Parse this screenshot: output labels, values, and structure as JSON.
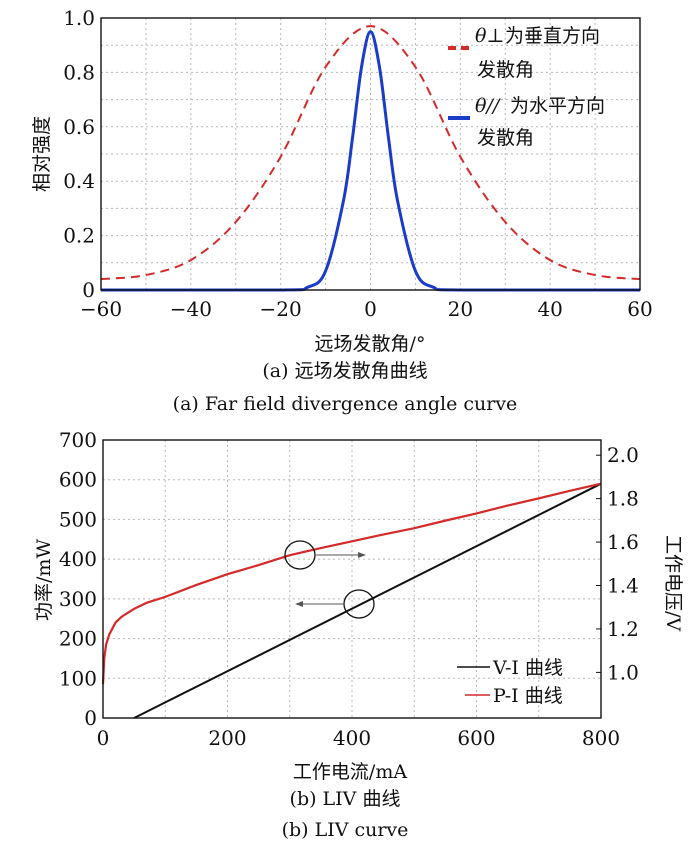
{
  "chart_data": [
    {
      "type": "line",
      "title": "",
      "xlabel": "远场发散角/°",
      "ylabel": "相对强度",
      "xlim": [
        -60,
        60
      ],
      "ylim": [
        0,
        1.0
      ],
      "xticks": [
        "−60",
        "−40",
        "−20",
        "0",
        "20",
        "40",
        "60"
      ],
      "yticks": [
        "0",
        "0.2",
        "0.4",
        "0.6",
        "0.8",
        "1.0"
      ],
      "grid": true,
      "legend_position": "top-right",
      "series": [
        {
          "legend_symbol": "θ⊥",
          "legend_text": "为垂直方向",
          "legend_text2": "发散角",
          "color": "#d42a2a",
          "style": "dashed",
          "x": [
            -60,
            -50,
            -40,
            -30,
            -20,
            -10,
            0,
            10,
            20,
            30,
            40,
            50,
            60
          ],
          "y": [
            0.04,
            0.055,
            0.11,
            0.25,
            0.49,
            0.82,
            0.97,
            0.82,
            0.49,
            0.25,
            0.11,
            0.055,
            0.04
          ]
        },
        {
          "legend_symbol": "θ//",
          "legend_text": "为水平方向",
          "legend_text2": "发散角",
          "color": "#1a3cc8",
          "style": "solid",
          "x": [
            -60,
            -20,
            -14,
            -10,
            -6,
            -4,
            -2,
            0,
            2,
            4,
            6,
            10,
            14,
            20,
            60
          ],
          "y": [
            0,
            0,
            0.01,
            0.07,
            0.33,
            0.56,
            0.82,
            0.95,
            0.82,
            0.56,
            0.33,
            0.07,
            0.01,
            0,
            0
          ]
        }
      ],
      "caption_cn": "(a) 远场发散角曲线",
      "caption_en": "(a) Far field divergence angle curve"
    },
    {
      "type": "line",
      "title": "",
      "xlabel": "工作电流/mA",
      "ylabel_left": "功率/mW",
      "ylabel_right": "工作电压/V",
      "xlim": [
        0,
        800
      ],
      "ylim_left": [
        0,
        700
      ],
      "ylim_right": [
        0.79,
        2.07
      ],
      "xticks": [
        "0",
        "200",
        "400",
        "600",
        "800"
      ],
      "yticks_left": [
        "0",
        "100",
        "200",
        "300",
        "400",
        "500",
        "600",
        "700"
      ],
      "yticks_right": [
        "1.0",
        "1.2",
        "1.4",
        "1.6",
        "1.8",
        "2.0"
      ],
      "grid": true,
      "legend_position": "bottom-right",
      "series": [
        {
          "name": "V-I 曲线",
          "color": "#111111",
          "axis": "left",
          "x": [
            50,
            800
          ],
          "y": [
            0,
            590
          ]
        },
        {
          "name": "P-I 曲线",
          "color": "#d42a2a",
          "axis": "left",
          "x": [
            0,
            2,
            5,
            10,
            20,
            30,
            50,
            70,
            100,
            150,
            200,
            250,
            300,
            350,
            400,
            450,
            500,
            550,
            600,
            650,
            700,
            750,
            800
          ],
          "y": [
            85,
            150,
            185,
            210,
            240,
            255,
            275,
            290,
            305,
            335,
            362,
            385,
            410,
            428,
            445,
            462,
            478,
            497,
            515,
            535,
            553,
            572,
            590
          ]
        }
      ],
      "caption_cn": "(b) LIV 曲线",
      "caption_en": "(b) LIV curve"
    }
  ]
}
